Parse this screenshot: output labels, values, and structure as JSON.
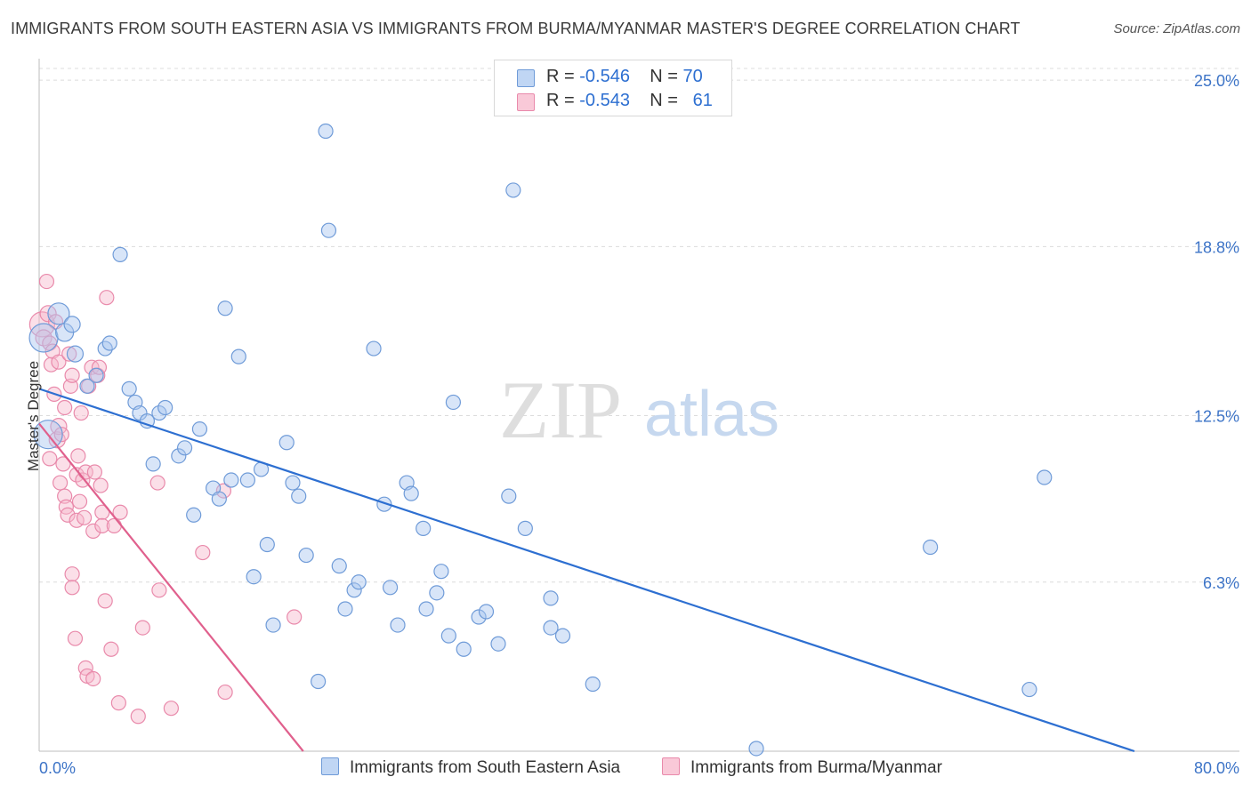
{
  "title": "IMMIGRANTS FROM SOUTH EASTERN ASIA VS IMMIGRANTS FROM BURMA/MYANMAR MASTER'S DEGREE CORRELATION CHART",
  "source": "Source: ZipAtlas.com",
  "watermark": {
    "zip": "ZIP",
    "atlas": "atlas"
  },
  "legend": {
    "rows": [
      {
        "r_label": "R = ",
        "r_value": "-0.546",
        "n_label": "N = ",
        "n_value": "70"
      },
      {
        "r_label": "R = ",
        "r_value": "-0.543",
        "n_label": "N = ",
        "n_value": "61"
      }
    ]
  },
  "bottom_legend": {
    "series1": "Immigrants from South Eastern Asia",
    "series2": "Immigrants from Burma/Myanmar"
  },
  "colors": {
    "blue_fill": "#a9c6ef",
    "blue_stroke": "#6f9bd8",
    "blue_line": "#2d6fd1",
    "pink_fill": "#f6b9cd",
    "pink_stroke": "#e98aab",
    "pink_line": "#e0608d",
    "axis_label": "#3d74c7",
    "grid": "#dcdcdc"
  },
  "chart_data": {
    "type": "scatter",
    "title": "IMMIGRANTS FROM SOUTH EASTERN ASIA VS IMMIGRANTS FROM BURMA/MYANMAR MASTER'S DEGREE CORRELATION CHART",
    "xlabel": "",
    "ylabel": "Master's Degree",
    "xlim": [
      0,
      80
    ],
    "ylim": [
      0,
      25.6
    ],
    "x_tick_labels": [
      "0.0%",
      "80.0%"
    ],
    "y_ticks": [
      6.3,
      12.5,
      18.8,
      25.0
    ],
    "y_tick_labels": [
      "6.3%",
      "12.5%",
      "18.8%",
      "25.0%"
    ],
    "series": [
      {
        "name": "Immigrants from South Eastern Asia",
        "color": "blue",
        "trend": {
          "x0": 0,
          "y0": 13.5,
          "x1": 73.0,
          "y1": 0
        },
        "points": [
          [
            0.3,
            15.4,
            16
          ],
          [
            0.6,
            11.8,
            16
          ],
          [
            1.3,
            16.3,
            12
          ],
          [
            1.7,
            15.6,
            10
          ],
          [
            2.2,
            15.9,
            9
          ],
          [
            2.4,
            14.8,
            9
          ],
          [
            3.2,
            13.6,
            8
          ],
          [
            3.8,
            14.0,
            8
          ],
          [
            4.4,
            15.0,
            8
          ],
          [
            4.7,
            15.2,
            8
          ],
          [
            5.4,
            18.5,
            8
          ],
          [
            6.0,
            13.5,
            8
          ],
          [
            6.4,
            13.0,
            8
          ],
          [
            6.7,
            12.6,
            8
          ],
          [
            7.2,
            12.3,
            8
          ],
          [
            7.6,
            10.7,
            8
          ],
          [
            8.0,
            12.6,
            8
          ],
          [
            8.4,
            12.8,
            8
          ],
          [
            9.3,
            11.0,
            8
          ],
          [
            9.7,
            11.3,
            8
          ],
          [
            10.3,
            8.8,
            8
          ],
          [
            10.7,
            12.0,
            8
          ],
          [
            11.6,
            9.8,
            8
          ],
          [
            12.0,
            9.4,
            8
          ],
          [
            12.4,
            16.5,
            8
          ],
          [
            12.8,
            10.1,
            8
          ],
          [
            13.3,
            14.7,
            8
          ],
          [
            13.9,
            10.1,
            8
          ],
          [
            14.3,
            6.5,
            8
          ],
          [
            14.8,
            10.5,
            8
          ],
          [
            15.2,
            7.7,
            8
          ],
          [
            15.6,
            4.7,
            8
          ],
          [
            16.5,
            11.5,
            8
          ],
          [
            16.9,
            10.0,
            8
          ],
          [
            17.3,
            9.5,
            8
          ],
          [
            17.8,
            7.3,
            8
          ],
          [
            18.6,
            2.6,
            8
          ],
          [
            19.1,
            23.1,
            8
          ],
          [
            19.3,
            19.4,
            8
          ],
          [
            20.0,
            6.9,
            8
          ],
          [
            20.4,
            5.3,
            8
          ],
          [
            21.0,
            6.0,
            8
          ],
          [
            21.3,
            6.3,
            8
          ],
          [
            22.3,
            15.0,
            8
          ],
          [
            23.0,
            9.2,
            8
          ],
          [
            23.4,
            6.1,
            8
          ],
          [
            23.9,
            4.7,
            8
          ],
          [
            24.5,
            10.0,
            8
          ],
          [
            24.8,
            9.6,
            8
          ],
          [
            25.6,
            8.3,
            8
          ],
          [
            25.8,
            5.3,
            8
          ],
          [
            26.5,
            5.9,
            8
          ],
          [
            26.8,
            6.7,
            8
          ],
          [
            27.3,
            4.3,
            8
          ],
          [
            27.6,
            13.0,
            8
          ],
          [
            28.3,
            3.8,
            8
          ],
          [
            29.3,
            5.0,
            8
          ],
          [
            29.8,
            5.2,
            8
          ],
          [
            30.6,
            4.0,
            8
          ],
          [
            31.3,
            9.5,
            8
          ],
          [
            31.6,
            20.9,
            8
          ],
          [
            32.4,
            8.3,
            8
          ],
          [
            34.1,
            5.7,
            8
          ],
          [
            34.1,
            4.6,
            8
          ],
          [
            34.9,
            4.3,
            8
          ],
          [
            36.9,
            2.5,
            8
          ],
          [
            47.8,
            0.1,
            8
          ],
          [
            59.4,
            7.6,
            8
          ],
          [
            66.0,
            2.3,
            8
          ],
          [
            67.0,
            10.2,
            8
          ]
        ]
      },
      {
        "name": "Immigrants from Burma/Myanmar",
        "color": "pink",
        "trend": {
          "x0": 0,
          "y0": 12.2,
          "x1": 17.6,
          "y1": 0
        },
        "points": [
          [
            0.2,
            15.9,
            14
          ],
          [
            0.3,
            15.4,
            9
          ],
          [
            0.5,
            17.5,
            8
          ],
          [
            0.6,
            16.3,
            9
          ],
          [
            0.7,
            15.2,
            8
          ],
          [
            0.7,
            10.9,
            8
          ],
          [
            0.8,
            14.4,
            8
          ],
          [
            0.9,
            14.9,
            8
          ],
          [
            1.0,
            13.3,
            8
          ],
          [
            1.1,
            16.0,
            8
          ],
          [
            1.2,
            11.6,
            9
          ],
          [
            1.3,
            12.1,
            9
          ],
          [
            1.3,
            14.5,
            8
          ],
          [
            1.4,
            10.0,
            8
          ],
          [
            1.5,
            11.8,
            8
          ],
          [
            1.6,
            10.7,
            8
          ],
          [
            1.7,
            12.8,
            8
          ],
          [
            1.7,
            9.5,
            8
          ],
          [
            1.8,
            9.1,
            8
          ],
          [
            1.9,
            8.8,
            8
          ],
          [
            2.0,
            14.8,
            8
          ],
          [
            2.1,
            13.6,
            8
          ],
          [
            2.2,
            6.6,
            8
          ],
          [
            2.2,
            6.1,
            8
          ],
          [
            2.4,
            4.2,
            8
          ],
          [
            2.5,
            8.6,
            8
          ],
          [
            2.5,
            10.3,
            8
          ],
          [
            2.6,
            11.0,
            8
          ],
          [
            2.7,
            9.3,
            8
          ],
          [
            2.8,
            12.6,
            8
          ],
          [
            2.9,
            10.1,
            8
          ],
          [
            3.0,
            8.7,
            8
          ],
          [
            3.1,
            10.4,
            8
          ],
          [
            3.1,
            3.1,
            8
          ],
          [
            3.2,
            2.8,
            8
          ],
          [
            3.3,
            13.6,
            8
          ],
          [
            3.5,
            14.3,
            8
          ],
          [
            3.6,
            8.2,
            8
          ],
          [
            3.6,
            2.7,
            8
          ],
          [
            3.7,
            10.4,
            8
          ],
          [
            3.9,
            14.0,
            8
          ],
          [
            4.0,
            14.3,
            8
          ],
          [
            4.1,
            9.9,
            8
          ],
          [
            4.2,
            8.9,
            8
          ],
          [
            4.2,
            8.4,
            8
          ],
          [
            4.4,
            5.6,
            8
          ],
          [
            4.5,
            16.9,
            8
          ],
          [
            4.8,
            3.8,
            8
          ],
          [
            5.0,
            8.4,
            8
          ],
          [
            5.3,
            1.8,
            8
          ],
          [
            5.4,
            8.9,
            8
          ],
          [
            6.6,
            1.3,
            8
          ],
          [
            6.9,
            4.6,
            8
          ],
          [
            7.9,
            10.0,
            8
          ],
          [
            8.0,
            6.0,
            8
          ],
          [
            8.8,
            1.6,
            8
          ],
          [
            10.9,
            7.4,
            8
          ],
          [
            12.3,
            9.7,
            8
          ],
          [
            12.4,
            2.2,
            8
          ],
          [
            17.0,
            5.0,
            8
          ],
          [
            2.2,
            14.0,
            8
          ]
        ]
      }
    ]
  }
}
